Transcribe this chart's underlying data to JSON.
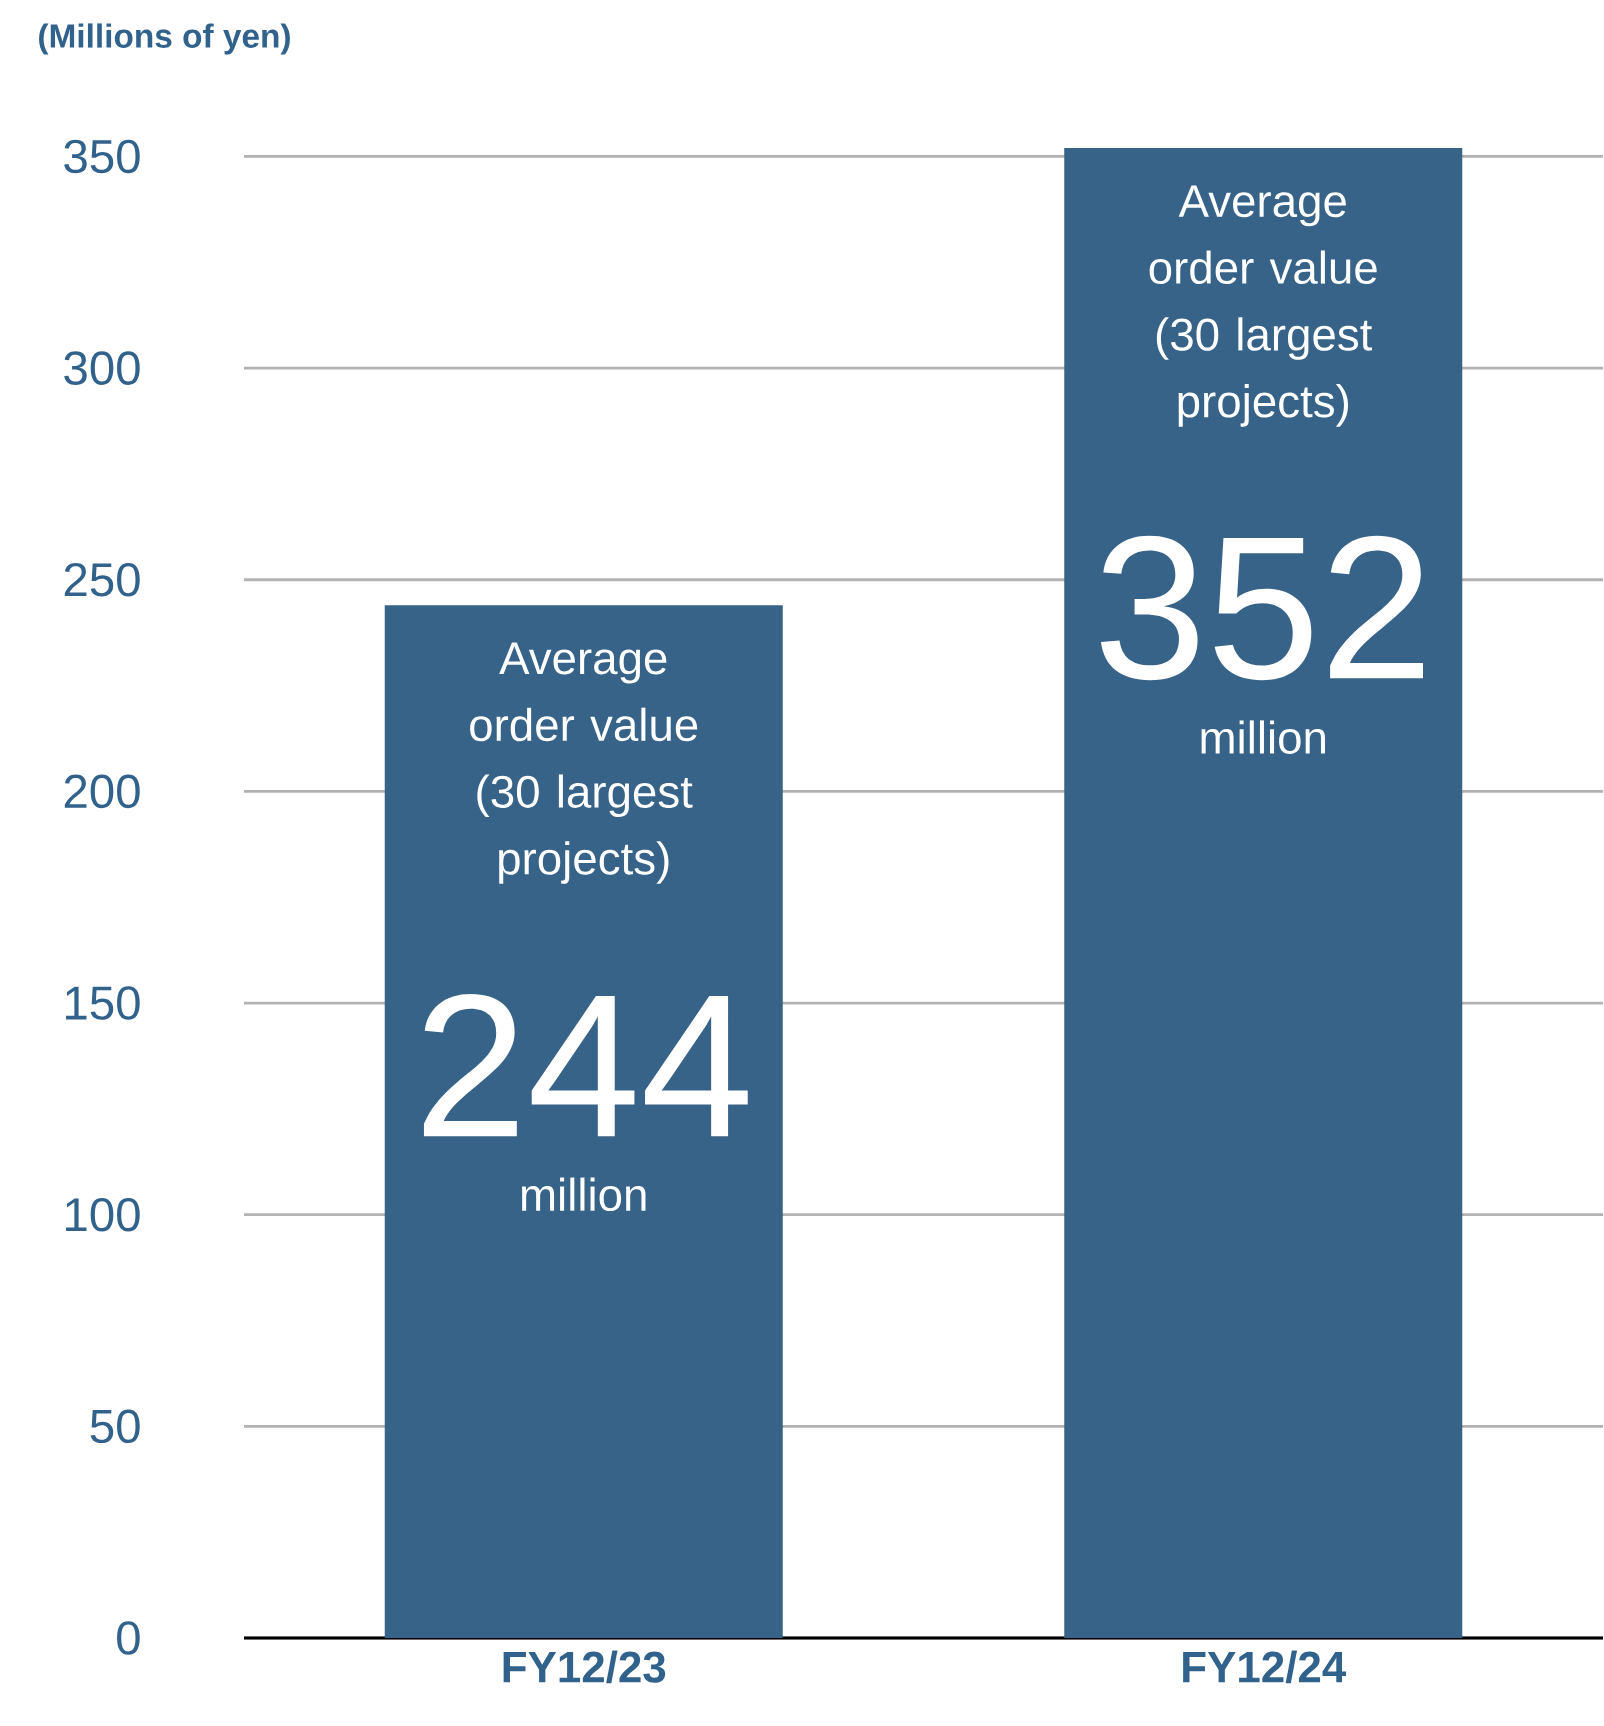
{
  "chart_data": {
    "type": "bar",
    "ylabel": "(Millions of yen)",
    "categories": [
      "FY12/23",
      "FY12/24"
    ],
    "values": [
      244,
      352
    ],
    "color": "#366387",
    "ylim": [
      0,
      352
    ],
    "yticks": [
      0,
      50,
      100,
      150,
      200,
      250,
      300,
      350
    ],
    "grid": "y",
    "data_labels": true,
    "annotations": [
      "Average order value (30 largest projects)",
      "million",
      "Average order value (30 largest projects)",
      "million"
    ]
  }
}
